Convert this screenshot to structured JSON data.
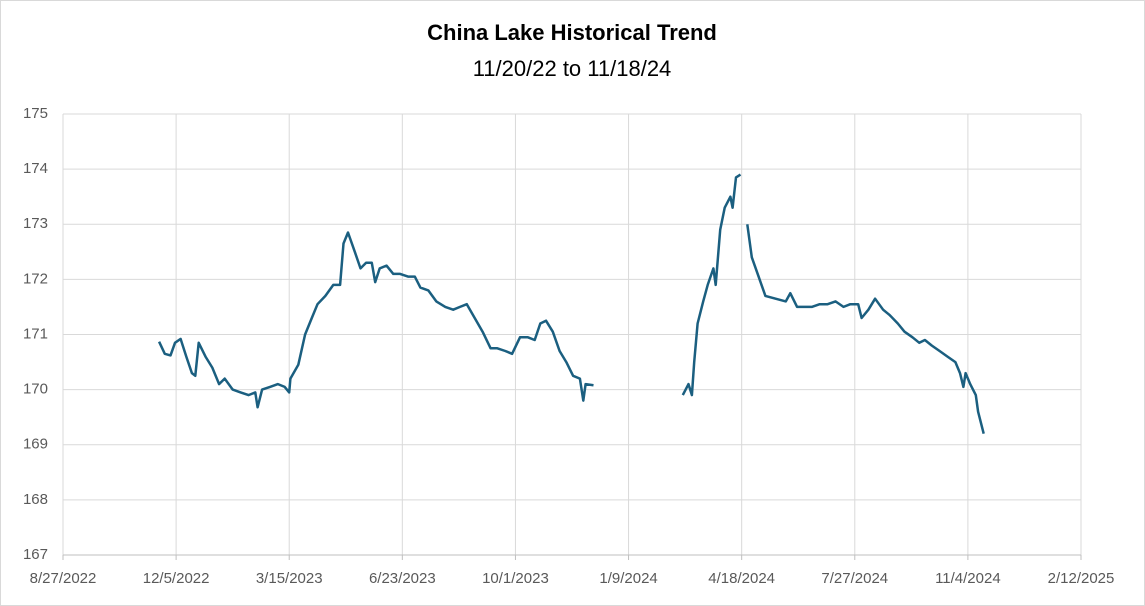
{
  "chart_data": {
    "type": "line",
    "title": "China Lake Historical Trend",
    "subtitle": "11/20/22 to 11/18/24",
    "grid": true,
    "xlim": [
      "8/27/2022",
      "2/12/2025"
    ],
    "xticks": [
      "8/27/2022",
      "12/5/2022",
      "3/15/2023",
      "6/23/2023",
      "10/1/2023",
      "1/9/2024",
      "4/18/2024",
      "7/27/2024",
      "11/4/2024",
      "2/12/2025"
    ],
    "ylim": [
      167,
      175
    ],
    "yticks": [
      167,
      168,
      169,
      170,
      171,
      172,
      173,
      174,
      175
    ],
    "series": [
      {
        "color": "#1b5f80",
        "x": [
          "11/20/2022",
          "11/25/2022",
          "11/30/2022",
          "12/4/2022",
          "12/9/2022",
          "12/14/2022",
          "12/19/2022",
          "12/22/2022",
          "12/25/2022",
          "12/31/2022",
          "1/6/2023",
          "1/12/2023",
          "1/17/2023",
          "1/24/2023",
          "1/31/2023",
          "2/7/2023",
          "2/13/2023",
          "2/15/2023",
          "2/19/2023",
          "2/26/2023",
          "3/5/2023",
          "3/11/2023",
          "3/15/2023",
          "3/16/2023",
          "3/23/2023",
          "3/29/2023",
          "4/4/2023",
          "4/9/2023",
          "4/16/2023",
          "4/23/2023",
          "4/29/2023",
          "5/2/2023",
          "5/6/2023",
          "5/12/2023",
          "5/17/2023",
          "5/22/2023",
          "5/27/2023",
          "5/30/2023",
          "6/3/2023",
          "6/9/2023",
          "6/15/2023",
          "6/21/2023",
          "6/28/2023",
          "7/4/2023",
          "7/9/2023",
          "7/16/2023",
          "7/23/2023",
          "7/31/2023",
          "8/7/2023",
          "8/13/2023",
          "8/19/2023",
          "8/26/2023",
          "9/2/2023",
          "9/9/2023",
          "9/15/2023",
          "9/22/2023",
          "9/28/2023",
          "10/5/2023",
          "10/12/2023",
          "10/18/2023",
          "10/23/2023",
          "10/28/2023",
          "11/3/2023",
          "11/9/2023",
          "11/15/2023",
          "11/21/2023",
          "11/27/2023",
          "11/30/2023",
          "12/2/2023",
          "12/9/2023",
          null,
          "2/26/2024",
          "3/2/2024",
          "3/5/2024",
          "3/7/2024",
          "3/10/2024",
          "3/15/2024",
          "3/19/2024",
          "3/24/2024",
          "3/26/2024",
          "3/30/2024",
          "4/3/2024",
          "4/8/2024",
          "4/10/2024",
          "4/13/2024",
          "4/17/2024",
          null,
          "4/23/2024",
          "4/27/2024",
          "5/3/2024",
          "5/9/2024",
          "5/18/2024",
          "5/27/2024",
          "5/31/2024",
          "6/6/2024",
          "6/13/2024",
          "6/19/2024",
          "6/26/2024",
          "7/3/2024",
          "7/10/2024",
          "7/17/2024",
          "7/23/2024",
          "7/30/2024",
          "8/2/2024",
          "8/8/2024",
          "8/14/2024",
          "8/21/2024",
          "8/27/2024",
          "9/3/2024",
          "9/9/2024",
          "9/16/2024",
          "9/22/2024",
          "9/27/2024",
          "10/3/2024",
          "10/10/2024",
          "10/17/2024",
          "10/24/2024",
          "10/28/2024",
          "10/31/2024",
          "11/2/2024",
          "11/6/2024",
          "11/11/2024",
          "11/13/2024",
          "11/18/2024"
        ],
        "values": [
          170.87,
          170.65,
          170.62,
          170.85,
          170.92,
          170.6,
          170.3,
          170.25,
          170.85,
          170.6,
          170.4,
          170.1,
          170.2,
          170.0,
          169.95,
          169.9,
          169.95,
          169.68,
          170.0,
          170.05,
          170.1,
          170.05,
          169.95,
          170.2,
          170.45,
          171.0,
          171.3,
          171.55,
          171.7,
          171.9,
          171.9,
          172.65,
          172.85,
          172.5,
          172.2,
          172.3,
          172.3,
          171.95,
          172.2,
          172.25,
          172.1,
          172.1,
          172.05,
          172.05,
          171.85,
          171.8,
          171.6,
          171.5,
          171.45,
          171.5,
          171.55,
          171.3,
          171.05,
          170.75,
          170.75,
          170.7,
          170.65,
          170.95,
          170.95,
          170.9,
          171.2,
          171.25,
          171.05,
          170.7,
          170.5,
          170.25,
          170.2,
          169.8,
          170.1,
          170.08,
          null,
          169.9,
          170.1,
          169.9,
          170.5,
          171.2,
          171.6,
          171.9,
          172.2,
          171.9,
          172.9,
          173.3,
          173.5,
          173.3,
          173.85,
          173.9,
          null,
          173.0,
          172.4,
          172.05,
          171.7,
          171.65,
          171.6,
          171.75,
          171.5,
          171.5,
          171.5,
          171.55,
          171.55,
          171.6,
          171.5,
          171.55,
          171.55,
          171.3,
          171.45,
          171.65,
          171.45,
          171.35,
          171.2,
          171.05,
          170.95,
          170.85,
          170.9,
          170.8,
          170.7,
          170.6,
          170.5,
          170.3,
          170.05,
          170.3,
          170.1,
          169.9,
          169.6,
          169.2
        ]
      }
    ]
  }
}
